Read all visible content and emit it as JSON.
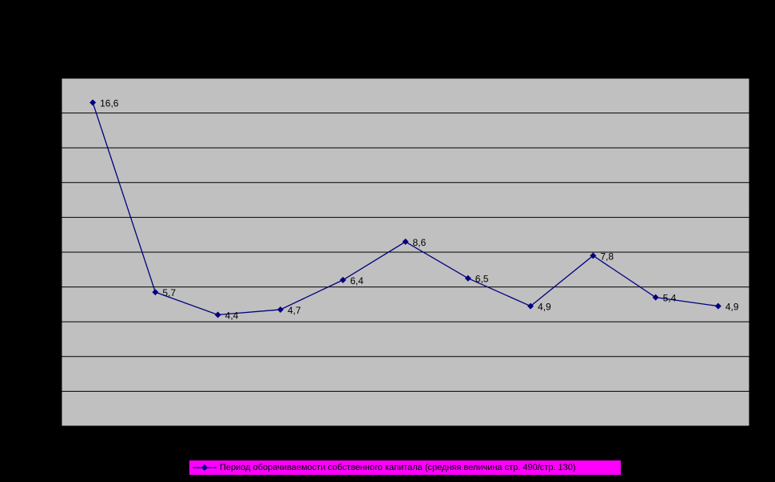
{
  "colors": {
    "background": "#000000",
    "plot_area": "#c0c0c0",
    "gridline": "#000000",
    "series_line": "#000080",
    "legend_background": "#ff00ff",
    "label_text": "#000000"
  },
  "chart_data": {
    "type": "line",
    "title": "",
    "xlabel": "",
    "ylabel": "",
    "ylim": [
      -2,
      18
    ],
    "grid": true,
    "legend_position": "bottom",
    "series": [
      {
        "name": "Период оборачиваемости собственного капитала (средняя величина стр. 490/стр. 130)",
        "values": [
          16.6,
          5.7,
          4.4,
          4.7,
          6.4,
          8.6,
          6.5,
          4.9,
          7.8,
          5.4,
          4.9
        ],
        "data_labels": [
          "16,6",
          "5,7",
          "4,4",
          "4,7",
          "6,4",
          "8,6",
          "6,5",
          "4,9",
          "7,8",
          "5,4",
          "4,9"
        ],
        "marker": "diamond"
      }
    ]
  },
  "legend": {
    "label": "Период оборачиваемости собственного капитала (средняя величина стр. 490/стр. 130)"
  }
}
